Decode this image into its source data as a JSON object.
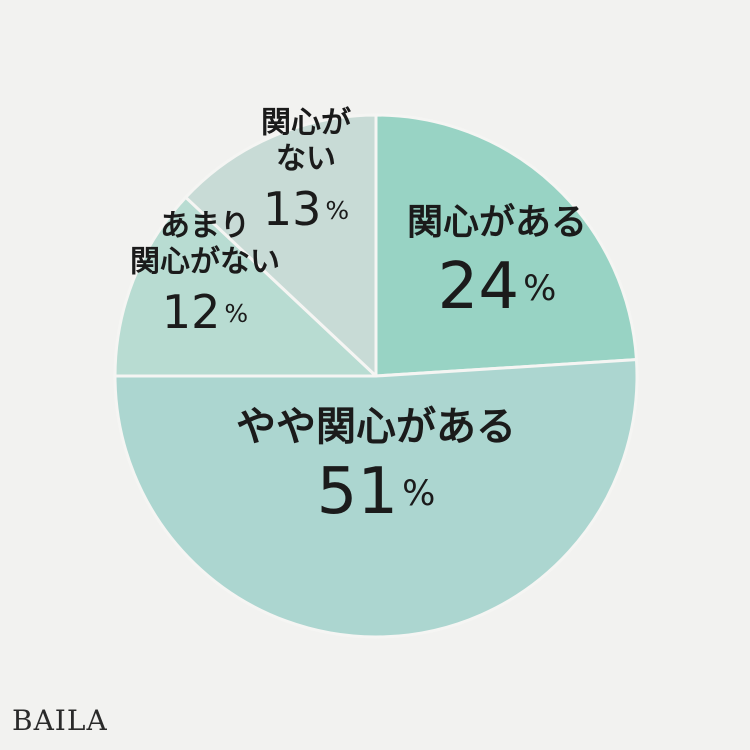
{
  "brand": {
    "logo_text": "BAILA"
  },
  "colors": {
    "background": "#f2f2f0",
    "slice_border": "#f5f5f3",
    "text": "#1b1b1b"
  },
  "chart_data": {
    "type": "pie",
    "start": "12 o'clock",
    "direction": "clockwise",
    "slices": [
      {
        "label_lines": [
          "関心がある"
        ],
        "value": 24,
        "display": "24%",
        "color": "#98d3c4"
      },
      {
        "label_lines": [
          "やや関心がある"
        ],
        "value": 51,
        "display": "51%",
        "color": "#acd6d0"
      },
      {
        "label_lines": [
          "あまり",
          "関心がない"
        ],
        "value": 12,
        "display": "12%",
        "color": "#b8dcd2"
      },
      {
        "label_lines": [
          "関心が",
          "ない"
        ],
        "value": 13,
        "display": "13%",
        "color": "#c8dbd6"
      }
    ]
  }
}
